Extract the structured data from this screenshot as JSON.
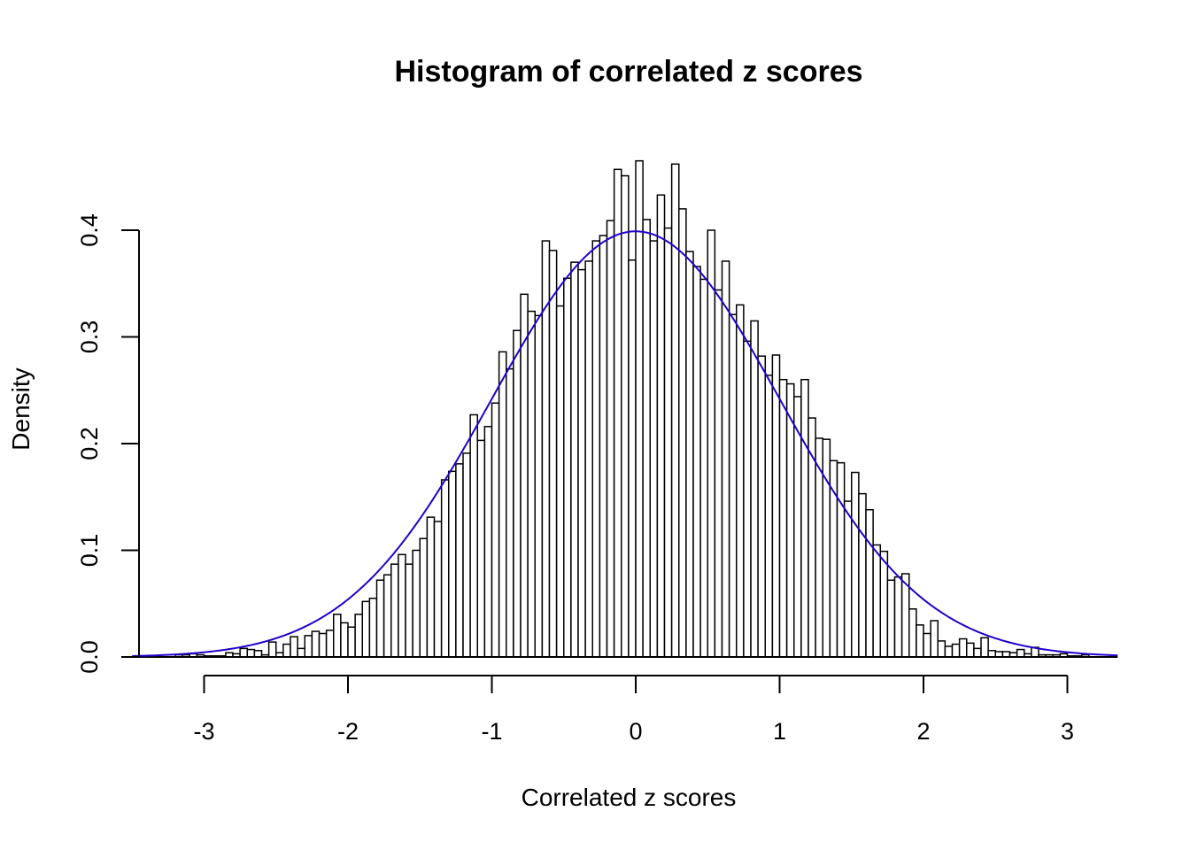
{
  "chart_data": {
    "type": "bar",
    "title": "Histogram of correlated z scores",
    "xlabel": "Correlated z scores",
    "ylabel": "Density",
    "xlim": [
      -3.5,
      3.35
    ],
    "ylim": [
      0,
      0.45
    ],
    "x_ticks": [
      -3,
      -2,
      -1,
      0,
      1,
      2,
      3
    ],
    "x_tick_labels": [
      "-3",
      "-2",
      "-1",
      "0",
      "1",
      "2",
      "3"
    ],
    "y_ticks": [
      0.0,
      0.1,
      0.2,
      0.3,
      0.4
    ],
    "y_tick_labels": [
      "0.0",
      "0.1",
      "0.2",
      "0.3",
      "0.4"
    ],
    "bin_start": -3.2,
    "bin_width": 0.05,
    "values": [
      0.002,
      0.002,
      0.003,
      0.002,
      0.001,
      0.001,
      0.001,
      0.004,
      0.003,
      0.008,
      0.007,
      0.006,
      0.002,
      0.014,
      0.004,
      0.012,
      0.019,
      0.008,
      0.02,
      0.024,
      0.022,
      0.025,
      0.04,
      0.032,
      0.028,
      0.04,
      0.052,
      0.055,
      0.072,
      0.077,
      0.087,
      0.096,
      0.087,
      0.1,
      0.111,
      0.131,
      0.127,
      0.166,
      0.174,
      0.181,
      0.191,
      0.227,
      0.203,
      0.216,
      0.238,
      0.286,
      0.27,
      0.306,
      0.34,
      0.324,
      0.32,
      0.39,
      0.381,
      0.329,
      0.355,
      0.37,
      0.363,
      0.371,
      0.39,
      0.395,
      0.409,
      0.457,
      0.451,
      0.372,
      0.465,
      0.41,
      0.39,
      0.433,
      0.402,
      0.462,
      0.42,
      0.38,
      0.366,
      0.354,
      0.4,
      0.344,
      0.371,
      0.321,
      0.33,
      0.296,
      0.315,
      0.282,
      0.264,
      0.283,
      0.26,
      0.256,
      0.244,
      0.26,
      0.224,
      0.205,
      0.204,
      0.184,
      0.182,
      0.146,
      0.173,
      0.153,
      0.138,
      0.105,
      0.099,
      0.072,
      0.075,
      0.078,
      0.045,
      0.03,
      0.022,
      0.034,
      0.015,
      0.01,
      0.012,
      0.017,
      0.013,
      0.008,
      0.018,
      0.006,
      0.005,
      0.005,
      0.004,
      0.007,
      0.003,
      0.009,
      0.002,
      0.002,
      0.002,
      0.003,
      0.001,
      0.001,
      0.002
    ],
    "curve": {
      "type": "line",
      "function": "normal density",
      "mean": 0,
      "sd": 1,
      "color": "#2200cc"
    },
    "bar_fill": "#ffffff",
    "bar_stroke": "#000000",
    "grid": false,
    "legend": "none"
  }
}
